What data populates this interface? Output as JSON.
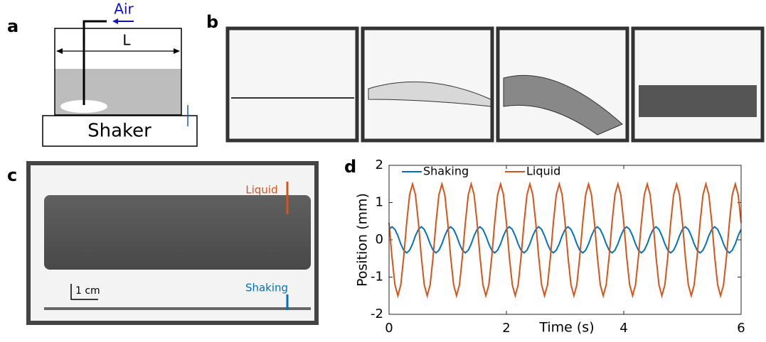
{
  "panel_a": {
    "label": "a",
    "air": "Air",
    "length": "L",
    "shaker": "Shaker"
  },
  "panel_b": {
    "label": "b"
  },
  "panel_c": {
    "label": "c",
    "liquid": "Liquid",
    "shaking": "Shaking",
    "scale_bar": "1 cm"
  },
  "panel_d": {
    "label": "d"
  },
  "chart_data": {
    "type": "line",
    "x_label": "Time (s)",
    "y_label": "Position (mm)",
    "x": [
      0,
      0.05,
      0.1,
      0.15,
      0.2,
      0.25,
      0.3,
      0.35,
      0.4,
      0.45,
      0.5,
      0.55,
      0.6,
      0.65,
      0.7,
      0.75,
      0.8,
      0.85,
      0.9,
      0.95,
      1,
      1.05,
      1.1,
      1.15,
      1.2,
      1.25,
      1.3,
      1.35,
      1.4,
      1.45,
      1.5,
      1.55,
      1.6,
      1.65,
      1.7,
      1.75,
      1.8,
      1.85,
      1.9,
      1.95,
      2,
      2.05,
      2.1,
      2.15,
      2.2,
      2.25,
      2.3,
      2.35,
      2.4,
      2.45,
      2.5,
      2.55,
      2.6,
      2.65,
      2.7,
      2.75,
      2.8,
      2.85,
      2.9,
      2.95,
      3,
      3.05,
      3.1,
      3.15,
      3.2,
      3.25,
      3.3,
      3.35,
      3.4,
      3.45,
      3.5,
      3.55,
      3.6,
      3.65,
      3.7,
      3.75,
      3.8,
      3.85,
      3.9,
      3.95,
      4,
      4.05,
      4.1,
      4.15,
      4.2,
      4.25,
      4.3,
      4.35,
      4.4,
      4.45,
      4.5,
      4.55,
      4.6,
      4.65,
      4.7,
      4.75,
      4.8,
      4.85,
      4.9,
      4.95,
      5,
      5.05,
      5.1,
      5.15,
      5.2,
      5.25,
      5.3,
      5.35,
      5.4,
      5.45,
      5.5,
      5.55,
      5.6,
      5.65,
      5.7,
      5.75,
      5.8,
      5.85,
      5.9,
      5.95,
      6
    ],
    "series": [
      {
        "name": "Shaking",
        "color": "#0072bd",
        "values": [
          0.28,
          0.35,
          0.28,
          0.11,
          -0.11,
          -0.28,
          -0.35,
          -0.28,
          -0.11,
          0.11,
          0.28,
          0.35,
          0.28,
          0.11,
          -0.11,
          -0.28,
          -0.35,
          -0.28,
          -0.11,
          0.11,
          0.28,
          0.35,
          0.28,
          0.11,
          -0.11,
          -0.28,
          -0.35,
          -0.28,
          -0.11,
          0.11,
          0.28,
          0.35,
          0.28,
          0.11,
          -0.11,
          -0.28,
          -0.35,
          -0.28,
          -0.11,
          0.11,
          0.28,
          0.35,
          0.28,
          0.11,
          -0.11,
          -0.28,
          -0.35,
          -0.28,
          -0.11,
          0.11,
          0.28,
          0.35,
          0.28,
          0.11,
          -0.11,
          -0.28,
          -0.35,
          -0.28,
          -0.11,
          0.11,
          0.28,
          0.35,
          0.28,
          0.11,
          -0.11,
          -0.28,
          -0.35,
          -0.28,
          -0.11,
          0.11,
          0.28,
          0.35,
          0.28,
          0.11,
          -0.11,
          -0.28,
          -0.35,
          -0.28,
          -0.11,
          0.11,
          0.28,
          0.35,
          0.28,
          0.11,
          -0.11,
          -0.28,
          -0.35,
          -0.28,
          -0.11,
          0.11,
          0.28,
          0.35,
          0.28,
          0.11,
          -0.11,
          -0.28,
          -0.35,
          -0.28,
          -0.11,
          0.11,
          0.28,
          0.35,
          0.28,
          0.11,
          -0.11,
          -0.28,
          -0.35,
          -0.28,
          -0.11,
          0.11,
          0.28,
          0.35,
          0.28,
          0.11,
          -0.11,
          -0.28,
          -0.35,
          -0.28,
          -0.11,
          0.11,
          0.28
        ]
      },
      {
        "name": "Liquid",
        "color": "#d95319",
        "values": [
          0.46,
          -0.46,
          -1.21,
          -1.5,
          -1.21,
          -0.46,
          0.46,
          1.21,
          1.5,
          1.21,
          0.46,
          -0.46,
          -1.21,
          -1.5,
          -1.21,
          -0.46,
          0.46,
          1.21,
          1.5,
          1.21,
          0.46,
          -0.46,
          -1.21,
          -1.5,
          -1.21,
          -0.46,
          0.46,
          1.21,
          1.5,
          1.21,
          0.46,
          -0.46,
          -1.21,
          -1.5,
          -1.21,
          -0.46,
          0.46,
          1.21,
          1.5,
          1.21,
          0.46,
          -0.46,
          -1.21,
          -1.5,
          -1.21,
          -0.46,
          0.46,
          1.21,
          1.5,
          1.21,
          0.46,
          -0.46,
          -1.21,
          -1.5,
          -1.21,
          -0.46,
          0.46,
          1.21,
          1.5,
          1.21,
          0.46,
          -0.46,
          -1.21,
          -1.5,
          -1.21,
          -0.46,
          0.46,
          1.21,
          1.5,
          1.21,
          0.46,
          -0.46,
          -1.21,
          -1.5,
          -1.21,
          -0.46,
          0.46,
          1.21,
          1.5,
          1.21,
          0.46,
          -0.46,
          -1.21,
          -1.5,
          -1.21,
          -0.46,
          0.46,
          1.21,
          1.5,
          1.21,
          0.46,
          -0.46,
          -1.21,
          -1.5,
          -1.21,
          -0.46,
          0.46,
          1.21,
          1.5,
          1.21,
          0.46,
          -0.46,
          -1.21,
          -1.5,
          -1.21,
          -0.46,
          0.46,
          1.21,
          1.5,
          1.21,
          0.46,
          -0.46,
          -1.21,
          -1.5,
          -1.21,
          -0.46,
          0.46,
          1.21,
          1.5,
          1.21,
          0.46
        ]
      }
    ],
    "xlim": [
      0,
      6
    ],
    "ylim": [
      -2,
      2
    ],
    "xticks": [
      0,
      2,
      4,
      6
    ],
    "yticks": [
      -2,
      -1,
      0,
      1,
      2
    ],
    "grid": false,
    "legend": "top-left"
  }
}
